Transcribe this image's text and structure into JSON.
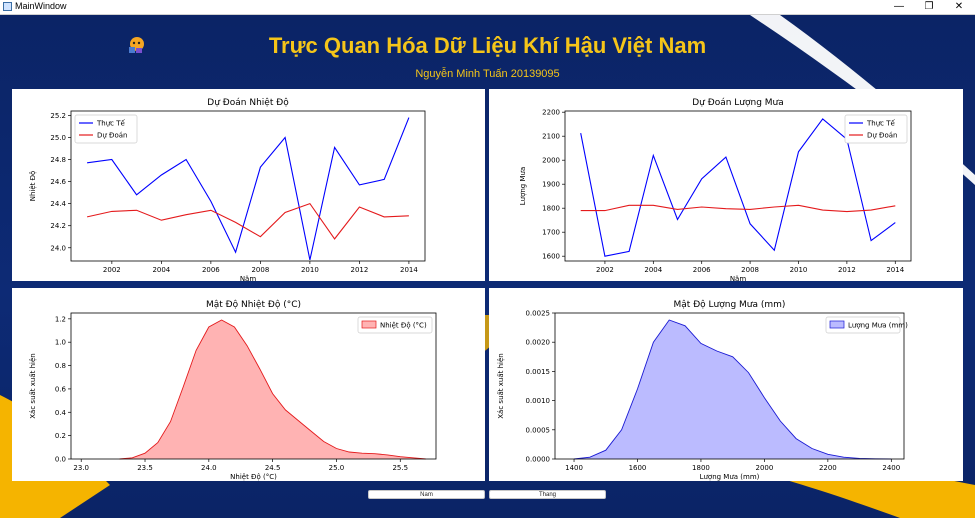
{
  "window": {
    "title": "MainWindow",
    "minimize": "—",
    "restore": "❐",
    "close": "✕"
  },
  "header": {
    "title": "Trực Quan Hóa Dữ Liệu Khí Hậu Việt Nam",
    "subtitle": "Nguyễn Minh Tuấn 20139095"
  },
  "buttons": {
    "year": "Nam",
    "month": "Thang"
  },
  "colors": {
    "background": "#0b2466",
    "accent_yellow": "#f5c519",
    "actual": "#0000ff",
    "predicted": "#e41a1c",
    "temp_fill": "#ffb3b3",
    "rain_fill": "#b3b3ff"
  },
  "chart_data": [
    {
      "type": "line",
      "title": "Dự Đoán Nhiệt Độ",
      "xlabel": "Năm",
      "ylabel": "Nhiệt Độ",
      "x": [
        2001,
        2002,
        2003,
        2004,
        2005,
        2006,
        2007,
        2008,
        2009,
        2010,
        2011,
        2012,
        2013,
        2014
      ],
      "xticks": [
        2002,
        2004,
        2006,
        2008,
        2010,
        2012,
        2014
      ],
      "yticks": [
        24.0,
        24.2,
        24.4,
        24.6,
        24.8,
        25.0,
        25.2
      ],
      "ylim": [
        23.88,
        25.24
      ],
      "xlim": [
        2000.35,
        2014.65
      ],
      "legend": "top-left",
      "series": [
        {
          "name": "Thực Tế",
          "color": "#0000ff",
          "values": [
            24.77,
            24.8,
            24.48,
            24.66,
            24.8,
            24.42,
            23.96,
            24.73,
            25.0,
            23.89,
            24.91,
            24.57,
            24.62,
            25.18
          ]
        },
        {
          "name": "Dự Đoán",
          "color": "#e41a1c",
          "values": [
            24.28,
            24.33,
            24.34,
            24.25,
            24.3,
            24.34,
            24.23,
            24.1,
            24.32,
            24.4,
            24.08,
            24.37,
            24.28,
            24.29
          ]
        }
      ]
    },
    {
      "type": "line",
      "title": "Dự Đoán Lượng Mưa",
      "xlabel": "Năm",
      "ylabel": "Lượng Mưa",
      "x": [
        2001,
        2002,
        2003,
        2004,
        2005,
        2006,
        2007,
        2008,
        2009,
        2010,
        2011,
        2012,
        2013,
        2014
      ],
      "xticks": [
        2002,
        2004,
        2006,
        2008,
        2010,
        2012,
        2014
      ],
      "yticks": [
        1600,
        1700,
        1800,
        1900,
        2000,
        2100,
        2200
      ],
      "ylim": [
        1580,
        2205
      ],
      "xlim": [
        2000.35,
        2014.65
      ],
      "legend": "top-right",
      "series": [
        {
          "name": "Thực Tế",
          "color": "#0000ff",
          "values": [
            2113,
            1600,
            1620,
            2020,
            1753,
            1922,
            2013,
            1735,
            1625,
            2035,
            2172,
            2087,
            1665,
            1740
          ]
        },
        {
          "name": "Dự Đoán",
          "color": "#e41a1c",
          "values": [
            1790,
            1790,
            1812,
            1812,
            1795,
            1805,
            1798,
            1795,
            1805,
            1812,
            1792,
            1786,
            1792,
            1810
          ]
        }
      ]
    },
    {
      "type": "area",
      "title": "Mật Độ Nhiệt Độ (°C)",
      "xlabel": "Nhiệt Độ (°C)",
      "ylabel": "Xác suất xuất hiện",
      "xticks": [
        23.0,
        23.5,
        24.0,
        24.5,
        25.0,
        25.5
      ],
      "yticks": [
        0.0,
        0.2,
        0.4,
        0.6,
        0.8,
        1.0,
        1.2
      ],
      "xlim": [
        22.92,
        25.78
      ],
      "ylim": [
        0,
        1.25
      ],
      "legend": "top-right",
      "series": [
        {
          "name": "Nhiệt Độ (°C)",
          "color": "#e41a1c",
          "fill": "#ffb3b3",
          "x": [
            23.3,
            23.4,
            23.5,
            23.6,
            23.7,
            23.8,
            23.9,
            24.0,
            24.1,
            24.2,
            24.3,
            24.4,
            24.5,
            24.6,
            24.7,
            24.8,
            24.9,
            25.0,
            25.1,
            25.2,
            25.3,
            25.4,
            25.5,
            25.6,
            25.7
          ],
          "values": [
            0.0,
            0.01,
            0.05,
            0.14,
            0.32,
            0.62,
            0.93,
            1.13,
            1.19,
            1.13,
            0.97,
            0.77,
            0.56,
            0.42,
            0.33,
            0.24,
            0.15,
            0.09,
            0.06,
            0.05,
            0.045,
            0.035,
            0.02,
            0.01,
            0.0
          ]
        }
      ]
    },
    {
      "type": "area",
      "title": "Mật Độ Lượng Mưa (mm)",
      "xlabel": "Lượng Mưa (mm)",
      "ylabel": "Xác suất xuất hiện",
      "xticks": [
        1400,
        1600,
        1800,
        2000,
        2200,
        2400
      ],
      "yticks": [
        0.0,
        0.0005,
        0.001,
        0.0015,
        0.002,
        0.0025
      ],
      "ytick_labels": [
        "0.0000",
        "0.0005",
        "0.0010",
        "0.0015",
        "0.0020",
        "0.0025"
      ],
      "xlim": [
        1340,
        2440
      ],
      "ylim": [
        0,
        0.0025
      ],
      "legend": "top-right",
      "series": [
        {
          "name": "Lượng Mưa (mm)",
          "color": "#1a1ad4",
          "fill": "#bbbbff",
          "x": [
            1400,
            1450,
            1500,
            1550,
            1600,
            1650,
            1700,
            1750,
            1800,
            1850,
            1900,
            1950,
            2000,
            2050,
            2100,
            2150,
            2200,
            2250,
            2300,
            2350,
            2400
          ],
          "values": [
            0.0,
            3e-05,
            0.00015,
            0.0005,
            0.0012,
            0.002,
            0.00238,
            0.00228,
            0.00198,
            0.00185,
            0.00175,
            0.00148,
            0.00105,
            0.00065,
            0.00035,
            0.00018,
            8e-05,
            3e-05,
            1e-05,
            3e-06,
            0.0
          ]
        }
      ]
    }
  ]
}
